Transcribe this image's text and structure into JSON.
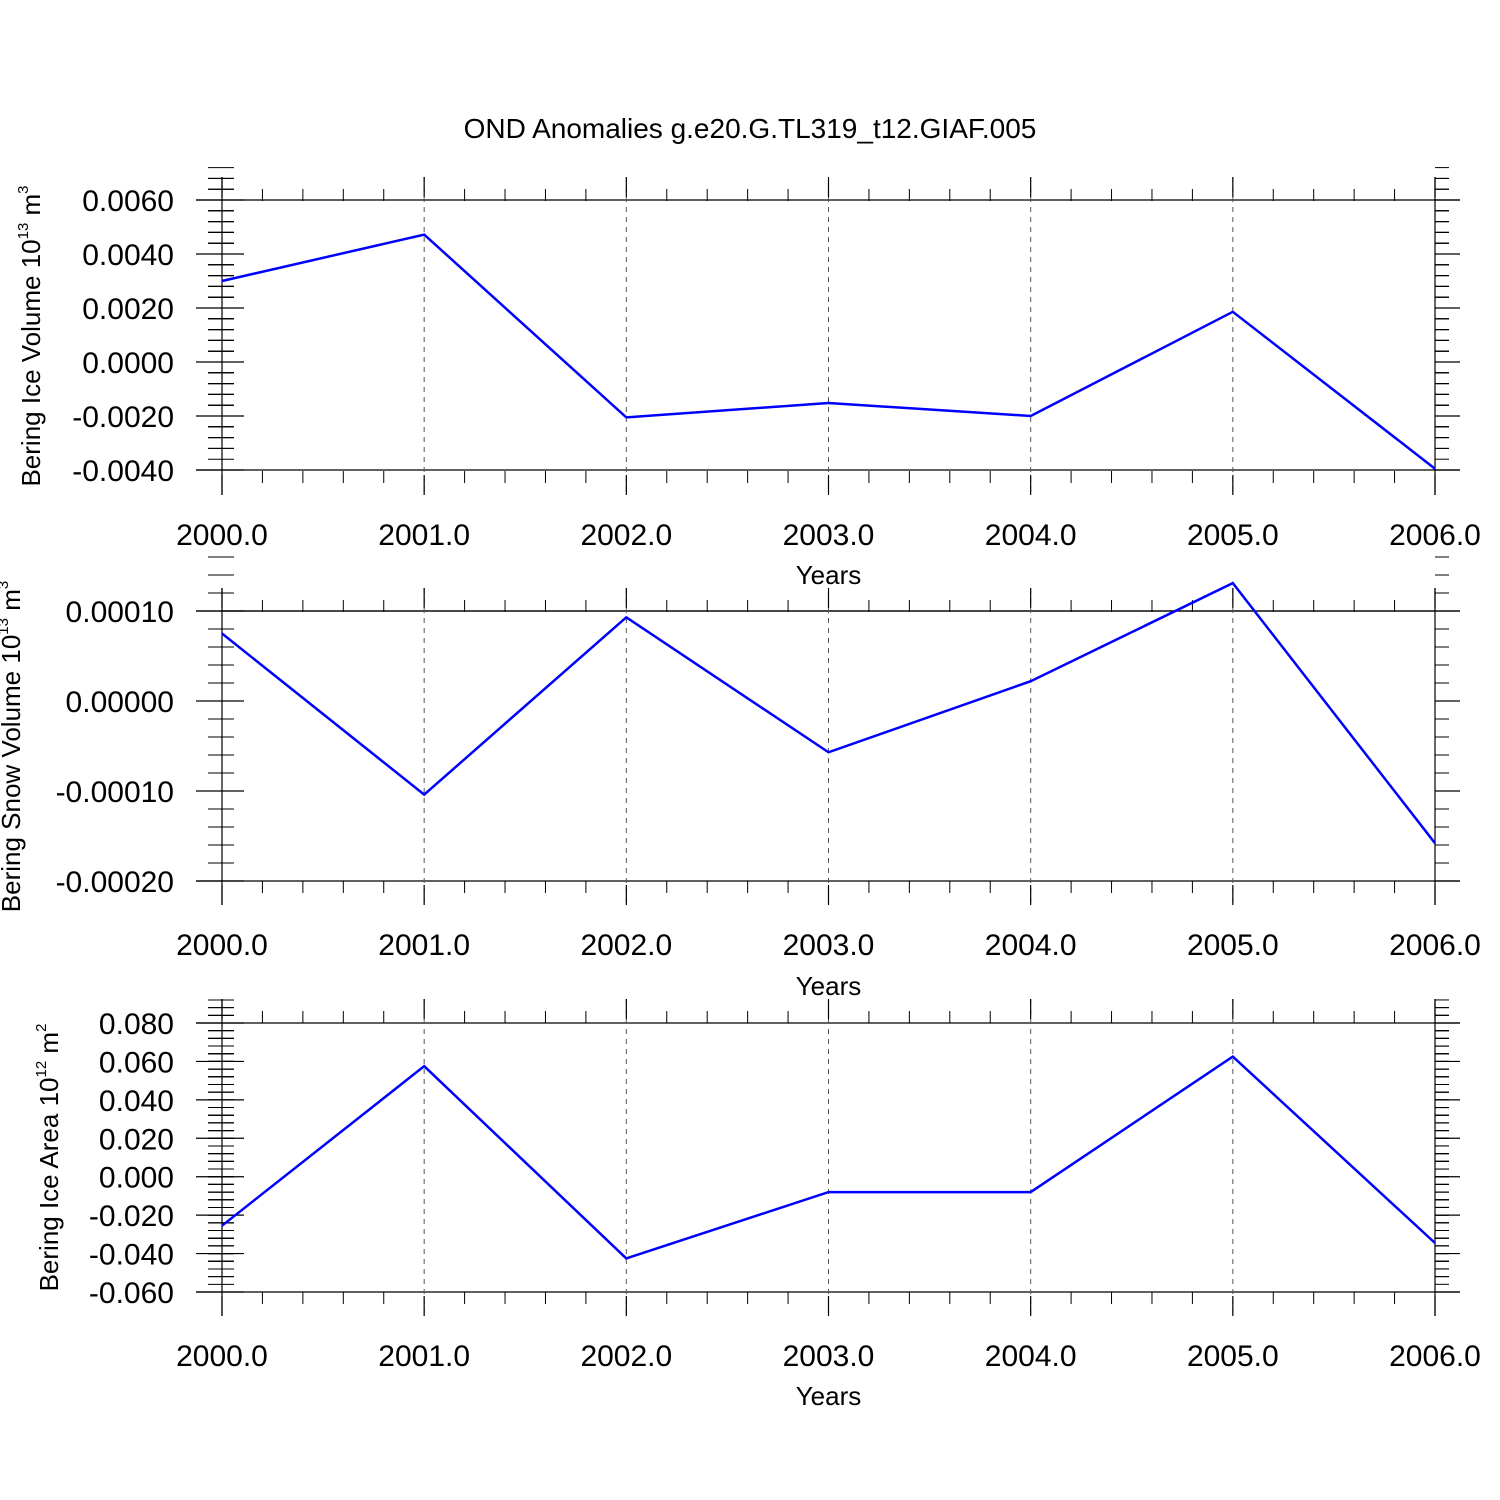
{
  "title": "OND Anomalies g.e20.G.TL319_t12.GIAF.005",
  "line_color": "#0000ff",
  "chart_data": [
    {
      "type": "line",
      "x": [
        2000,
        2001,
        2002,
        2003,
        2004,
        2005,
        2006
      ],
      "series": [
        {
          "values": [
            0.003,
            0.00472,
            -0.00205,
            -0.00152,
            -0.002,
            0.00186,
            -0.00395
          ]
        }
      ],
      "ylim": [
        -0.004,
        0.0069
      ],
      "xlim": [
        2000,
        2006
      ],
      "yticks": [
        "0.0060",
        "0.0040",
        "0.0020",
        "0.0000",
        "-0.0020",
        "-0.0040"
      ],
      "ytick_values": [
        0.006,
        0.004,
        0.002,
        0.0,
        -0.002,
        -0.004
      ],
      "xticks": [
        "2000.0",
        "2001.0",
        "2002.0",
        "2003.0",
        "2004.0",
        "2005.0",
        "2006.0"
      ],
      "xlabel": "Years",
      "ylabel_main": "Bering Ice Volume 10",
      "ylabel_sup": "13",
      "ylabel_unit": " m",
      "ylabel_unit_sup": "3",
      "grid": "vertical dashed"
    },
    {
      "type": "line",
      "x": [
        2000,
        2001,
        2002,
        2003,
        2004,
        2005,
        2006
      ],
      "series": [
        {
          "values": [
            7.5e-05,
            -0.000104,
            9.3e-05,
            -5.7e-05,
            2.2e-05,
            0.000131,
            -0.000158
          ]
        }
      ],
      "ylim": [
        -0.0002,
        0.00015
      ],
      "xlim": [
        2000,
        2006
      ],
      "yticks": [
        "0.00010",
        "0.00000",
        "-0.00010",
        "-0.00020"
      ],
      "ytick_values": [
        0.0001,
        0.0,
        -0.0001,
        -0.0002
      ],
      "xticks": [
        "2000.0",
        "2001.0",
        "2002.0",
        "2003.0",
        "2004.0",
        "2005.0",
        "2006.0"
      ],
      "xlabel": "Years",
      "ylabel_main": "Bering Snow Volume 10",
      "ylabel_sup": "13",
      "ylabel_unit": " m",
      "ylabel_unit_sup": "3",
      "grid": "vertical dashed"
    },
    {
      "type": "line",
      "x": [
        2000,
        2001,
        2002,
        2003,
        2004,
        2005,
        2006
      ],
      "series": [
        {
          "values": [
            -0.0255,
            0.0575,
            -0.0425,
            -0.008,
            -0.008,
            0.0625,
            -0.0345
          ]
        }
      ],
      "ylim": [
        -0.06,
        0.08
      ],
      "xlim": [
        2000,
        2006
      ],
      "yticks": [
        "0.080",
        "0.060",
        "0.040",
        "0.020",
        "0.000",
        "-0.020",
        "-0.040",
        "-0.060"
      ],
      "ytick_values": [
        0.08,
        0.06,
        0.04,
        0.02,
        0.0,
        -0.02,
        -0.04,
        -0.06
      ],
      "xticks": [
        "2000.0",
        "2001.0",
        "2002.0",
        "2003.0",
        "2004.0",
        "2005.0",
        "2006.0"
      ],
      "xlabel": "Years",
      "ylabel_main": "Bering Ice Area 10",
      "ylabel_sup": "12",
      "ylabel_unit": " m",
      "ylabel_unit_sup": "2",
      "grid": "vertical dashed"
    }
  ]
}
